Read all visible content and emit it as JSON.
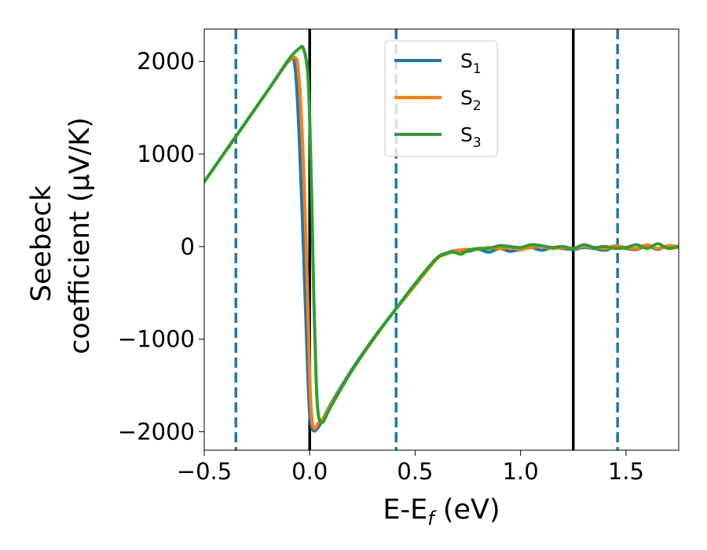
{
  "chart_data": {
    "type": "line",
    "xlabel": "E-E_f (eV)",
    "ylabel_line1": "Seebeck",
    "ylabel_line2": "coefficient  (μV/K)",
    "xlim": [
      -0.5,
      1.75
    ],
    "ylim": [
      -2200,
      2350
    ],
    "xticks": [
      -0.5,
      0.0,
      0.5,
      1.0,
      1.5
    ],
    "xtick_labels": [
      "−0.5",
      "0.0",
      "0.5",
      "1.0",
      "1.5"
    ],
    "yticks": [
      -2000,
      -1000,
      0,
      1000,
      2000
    ],
    "ytick_labels": [
      "−2000",
      "−1000",
      "0",
      "1000",
      "2000"
    ],
    "legend_position": "top-center",
    "vlines": [
      {
        "x": -0.35,
        "style": "dashed",
        "color": "#1f77b4"
      },
      {
        "x": 0.0,
        "style": "solid",
        "color": "#000000"
      },
      {
        "x": 0.41,
        "style": "dashed",
        "color": "#1f77b4"
      },
      {
        "x": 1.25,
        "style": "solid",
        "color": "#000000"
      },
      {
        "x": 1.46,
        "style": "dashed",
        "color": "#1f77b4"
      }
    ],
    "series": [
      {
        "name": "S_1",
        "color": "#1f77b4",
        "x": [
          -0.5,
          -0.35,
          -0.2,
          -0.1,
          -0.07,
          -0.05,
          -0.03,
          -0.01,
          0.0,
          0.01,
          0.02,
          0.03,
          0.05,
          0.1,
          0.2,
          0.3,
          0.4,
          0.5,
          0.6,
          0.65,
          0.7,
          0.75,
          0.8,
          0.85,
          0.9,
          0.95,
          1.0,
          1.05,
          1.1,
          1.15,
          1.2,
          1.25,
          1.3,
          1.35,
          1.4,
          1.45,
          1.5,
          1.55,
          1.6,
          1.65,
          1.7,
          1.75
        ],
        "y": [
          700,
          1190,
          1680,
          2000,
          1950,
          1200,
          0,
          -1300,
          -1800,
          -1960,
          -1990,
          -1980,
          -1920,
          -1700,
          -1330,
          -1000,
          -700,
          -420,
          -140,
          -70,
          -40,
          -50,
          -30,
          -60,
          -20,
          -50,
          -30,
          -10,
          -40,
          -10,
          -20,
          -30,
          -10,
          -20,
          -40,
          0,
          -20,
          -30,
          10,
          -30,
          10,
          -10
        ]
      },
      {
        "name": "S_2",
        "color": "#ff7f0e",
        "x": [
          -0.5,
          -0.35,
          -0.2,
          -0.08,
          -0.05,
          -0.03,
          -0.01,
          0.0,
          0.01,
          0.02,
          0.03,
          0.04,
          0.06,
          0.1,
          0.2,
          0.3,
          0.4,
          0.5,
          0.6,
          0.65,
          0.7,
          0.75,
          0.8,
          0.85,
          0.9,
          0.95,
          1.0,
          1.05,
          1.1,
          1.15,
          1.2,
          1.25,
          1.3,
          1.35,
          1.4,
          1.45,
          1.5,
          1.55,
          1.6,
          1.65,
          1.7,
          1.75
        ],
        "y": [
          700,
          1190,
          1680,
          2040,
          1800,
          900,
          -500,
          -1400,
          -1850,
          -1960,
          -1950,
          -1910,
          -1870,
          -1710,
          -1340,
          -1010,
          -700,
          -420,
          -140,
          -80,
          -40,
          -30,
          -30,
          -10,
          -20,
          -10,
          -30,
          -10,
          0,
          -20,
          -10,
          -20,
          0,
          -10,
          -20,
          10,
          -10,
          -20,
          20,
          -20,
          10,
          0
        ]
      },
      {
        "name": "S_3",
        "color": "#2ca02c",
        "x": [
          -0.5,
          -0.35,
          -0.2,
          -0.1,
          -0.05,
          -0.03,
          -0.01,
          0.0,
          0.01,
          0.02,
          0.03,
          0.04,
          0.06,
          0.1,
          0.2,
          0.3,
          0.4,
          0.5,
          0.6,
          0.65,
          0.68,
          0.72,
          0.75,
          0.8,
          0.85,
          0.9,
          0.95,
          1.0,
          1.05,
          1.1,
          1.15,
          1.2,
          1.25,
          1.3,
          1.35,
          1.4,
          1.45,
          1.5,
          1.55,
          1.6,
          1.65,
          1.7,
          1.75
        ],
        "y": [
          700,
          1190,
          1680,
          2020,
          2140,
          2140,
          1900,
          1400,
          500,
          -600,
          -1400,
          -1800,
          -1900,
          -1730,
          -1340,
          -1000,
          -700,
          -400,
          -130,
          -70,
          -60,
          -80,
          -40,
          -20,
          -20,
          10,
          0,
          -10,
          20,
          10,
          -10,
          0,
          -20,
          20,
          -10,
          0,
          -20,
          -10,
          20,
          -20,
          30,
          -20,
          0
        ]
      }
    ]
  }
}
